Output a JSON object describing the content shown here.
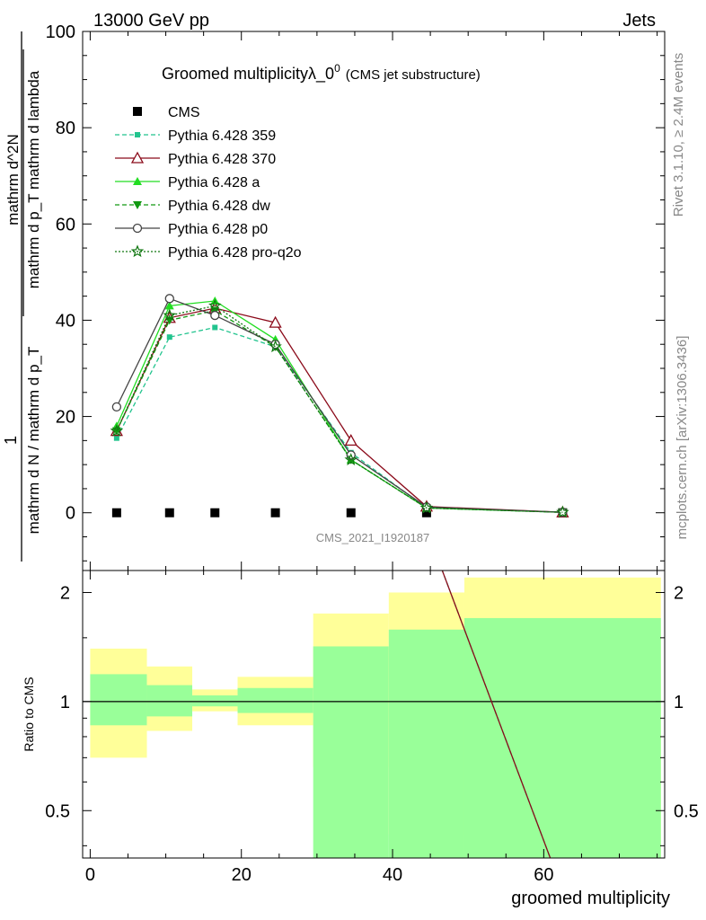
{
  "header": {
    "left": "13000 GeV pp",
    "right": "Jets"
  },
  "side": {
    "rivet": "Rivet 3.1.10, ≥ 2.4M events",
    "mcplots": "mcplots.cern.ch [arXiv:1306.3436]"
  },
  "analysis_id": "CMS_2021_I1920187",
  "chart_data": [
    {
      "type": "line",
      "title": "Groomed multiplicityλ_0",
      "title_sup": "0",
      "subtitle": "(CMS jet substructure)",
      "ylabel_numerator": "1",
      "ylabel_denominator": "mathrm d N / mathrm d p_T",
      "ylabel_right_numerator": "mathrm d^2N",
      "ylabel_right_denominator": "mathrm d p_T mathrm d lambda",
      "xlim": [
        -1,
        76
      ],
      "ylim": [
        -12,
        100
      ],
      "yticks": [
        0,
        20,
        40,
        60,
        80,
        100
      ],
      "legend_position": "top-left",
      "x": [
        3.5,
        10.5,
        16.5,
        24.5,
        34.5,
        44.5,
        62.5
      ],
      "series": [
        {
          "name": "CMS",
          "color": "#000000",
          "marker": "square",
          "line": "none",
          "values": [
            0,
            0,
            0,
            0,
            0,
            0,
            0
          ]
        },
        {
          "name": "Pythia 6.428 359",
          "color": "#22c48e",
          "marker": "small-square",
          "line": "dashed",
          "values": [
            15.5,
            36.5,
            38.5,
            34.5,
            12.5,
            1.0,
            0.1
          ]
        },
        {
          "name": "Pythia 6.428 370",
          "color": "#8b0a1a",
          "marker": "open-triangle",
          "line": "solid",
          "values": [
            17.0,
            40.5,
            42.5,
            39.5,
            15.0,
            1.3,
            0.1
          ]
        },
        {
          "name": "Pythia 6.428 a",
          "color": "#22dd22",
          "marker": "triangle",
          "line": "solid",
          "values": [
            18.0,
            43.0,
            44.0,
            36.0,
            11.0,
            1.0,
            0.1
          ]
        },
        {
          "name": "Pythia 6.428 dw",
          "color": "#119911",
          "marker": "down-triangle",
          "line": "dashed",
          "values": [
            17.0,
            40.0,
            42.0,
            34.5,
            11.0,
            1.0,
            0.1
          ]
        },
        {
          "name": "Pythia 6.428 p0",
          "color": "#444444",
          "marker": "open-circle",
          "line": "solid",
          "values": [
            22.0,
            44.5,
            41.0,
            35.0,
            12.0,
            1.2,
            0.1
          ]
        },
        {
          "name": "Pythia 6.428 pro-q2o",
          "color": "#117711",
          "marker": "star",
          "line": "dotted",
          "values": [
            17.0,
            41.0,
            43.0,
            34.5,
            11.0,
            1.0,
            0.1
          ]
        }
      ]
    },
    {
      "type": "area",
      "xlabel": "groomed multiplicity",
      "ylabel": "Ratio to CMS",
      "yscale": "log",
      "xlim": [
        -1,
        76
      ],
      "ylim": [
        0.37,
        2.3
      ],
      "yticks": [
        0.5,
        1,
        2
      ],
      "xticks": [
        0,
        20,
        40,
        60
      ],
      "bins": [
        {
          "lo": 0,
          "hi": 7.5,
          "stat_lo": 0.86,
          "stat_hi": 1.19,
          "tot_lo": 0.7,
          "tot_hi": 1.4
        },
        {
          "lo": 7.5,
          "hi": 13.5,
          "stat_lo": 0.91,
          "stat_hi": 1.11,
          "tot_lo": 0.83,
          "tot_hi": 1.25
        },
        {
          "lo": 13.5,
          "hi": 19.5,
          "stat_lo": 0.97,
          "stat_hi": 1.04,
          "tot_lo": 0.94,
          "tot_hi": 1.08
        },
        {
          "lo": 19.5,
          "hi": 29.5,
          "stat_lo": 0.93,
          "stat_hi": 1.09,
          "tot_lo": 0.86,
          "tot_hi": 1.17
        },
        {
          "lo": 29.5,
          "hi": 39.5,
          "stat_lo": 0.37,
          "stat_hi": 1.42,
          "tot_lo": 0.66,
          "tot_hi": 1.75
        },
        {
          "lo": 39.5,
          "hi": 49.5,
          "stat_lo": 0.37,
          "stat_hi": 1.58,
          "tot_lo": 0.43,
          "tot_hi": 2.0
        },
        {
          "lo": 49.5,
          "hi": 75.5,
          "stat_lo": 0.37,
          "stat_hi": 1.7,
          "tot_lo": 0.37,
          "tot_hi": 2.2
        }
      ],
      "ratio_lines": [
        {
          "name": "Pythia 6.428 359",
          "x": [
            44.5,
            62.5
          ],
          "values": [
            3.0,
            0.3
          ]
        },
        {
          "name": "Pythia 6.428 370",
          "x": [
            44.5,
            62.5
          ],
          "values": [
            3.0,
            0.3
          ]
        }
      ]
    }
  ]
}
